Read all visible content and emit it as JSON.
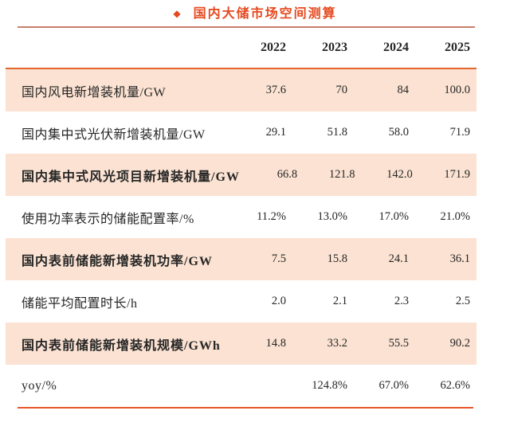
{
  "title": {
    "bullet": "◆",
    "text": "国内大储市场空间测算"
  },
  "chart_data": {
    "type": "table",
    "title": "国内大储市场空间测算",
    "columns": [
      "",
      "2022",
      "2023",
      "2024",
      "2025"
    ],
    "rows": [
      {
        "label": "国内风电新增装机量/GW",
        "values": [
          "37.6",
          "70",
          "84",
          "100.0"
        ],
        "emphasis": false
      },
      {
        "label": "国内集中式光伏新增装机量/GW",
        "values": [
          "29.1",
          "51.8",
          "58.0",
          "71.9"
        ],
        "emphasis": false
      },
      {
        "label": "国内集中式风光项目新增装机量/GW",
        "values": [
          "66.8",
          "121.8",
          "142.0",
          "171.9"
        ],
        "emphasis": true
      },
      {
        "label": "使用功率表示的储能配置率/%",
        "values": [
          "11.2%",
          "13.0%",
          "17.0%",
          "21.0%"
        ],
        "emphasis": false
      },
      {
        "label": "国内表前储能新增装机功率/GW",
        "values": [
          "7.5",
          "15.8",
          "24.1",
          "36.1"
        ],
        "emphasis": true
      },
      {
        "label": "储能平均配置时长/h",
        "values": [
          "2.0",
          "2.1",
          "2.3",
          "2.5"
        ],
        "emphasis": false
      },
      {
        "label": "国内表前储能新增装机规模/GWh",
        "values": [
          "14.8",
          "33.2",
          "55.5",
          "90.2"
        ],
        "emphasis": true
      },
      {
        "label": "yoy/%",
        "values": [
          "",
          "124.8%",
          "67.0%",
          "62.6%"
        ],
        "emphasis": false
      }
    ],
    "layout": {
      "shaded_row_indices": [
        0,
        2,
        4,
        6
      ],
      "value_alignment": "right",
      "grid": "none"
    }
  },
  "colors": {
    "accent_red": "#e5491f",
    "title_underline": "#c9806a",
    "table_top_line": "#e2662e",
    "bottom_line": "#e8562a",
    "row_shade": "#fbe2d2",
    "text_color": "#262626"
  }
}
